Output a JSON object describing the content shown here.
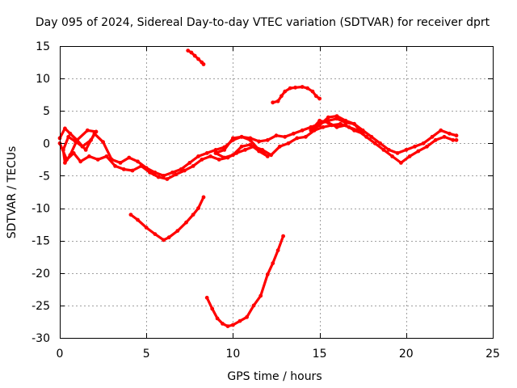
{
  "chart_data": {
    "type": "scatter",
    "title": "Day 095 of 2024, Sidereal Day-to-day VTEC variation (SDTVAR) for receiver dprt",
    "xlabel": "GPS time / hours",
    "ylabel": "SDTVAR / TECUs",
    "xlim": [
      0,
      25
    ],
    "ylim": [
      -30,
      15
    ],
    "xticks": [
      0,
      5,
      10,
      15,
      20,
      25
    ],
    "yticks": [
      15,
      10,
      5,
      0,
      -5,
      -10,
      -15,
      -20,
      -25,
      -30
    ],
    "grid": true,
    "color": "#ff0000",
    "series": [
      {
        "name": "main-band-upper",
        "x": [
          0,
          0.3,
          0.6,
          1.0,
          1.5,
          2.0,
          2.5,
          3.0,
          3.5,
          4.0,
          4.5,
          5.0,
          5.5,
          6.0,
          6.5,
          7.0,
          7.5,
          8.0,
          8.5,
          9.0,
          9.5,
          10.0,
          10.5,
          11.0,
          11.5,
          12.0,
          12.5,
          13.0,
          13.5,
          14.0,
          14.5,
          15.0,
          15.5,
          16.0,
          16.5,
          17.0,
          17.5,
          18.0,
          18.5,
          19.0,
          19.5,
          20.0,
          20.5,
          21.0,
          21.5,
          22.0,
          22.5,
          22.9
        ],
        "y": [
          0.8,
          2.3,
          1.5,
          0.5,
          -1.0,
          1.5,
          0.2,
          -2.5,
          -3.0,
          -2.2,
          -2.8,
          -3.8,
          -4.5,
          -5.0,
          -4.5,
          -4.0,
          -3.0,
          -2.0,
          -1.5,
          -1.0,
          -0.6,
          0.5,
          1.0,
          0.8,
          0.3,
          0.5,
          1.2,
          1.0,
          1.5,
          2.0,
          2.5,
          3.0,
          3.5,
          3.8,
          3.2,
          3.0,
          2.0,
          1.0,
          0.0,
          -1.0,
          -1.5,
          -1.0,
          -0.5,
          0.0,
          1.0,
          2.0,
          1.5,
          1.2
        ]
      },
      {
        "name": "main-band-lower",
        "x": [
          0,
          0.4,
          0.8,
          1.2,
          1.7,
          2.2,
          2.7,
          3.2,
          3.7,
          4.2,
          4.7,
          5.2,
          5.7,
          6.2,
          6.7,
          7.2,
          7.7,
          8.2,
          8.7,
          9.2,
          9.7,
          10.2,
          10.7,
          11.2,
          11.7,
          12.2,
          12.7,
          13.2,
          13.7,
          14.2,
          14.7,
          15.2,
          15.7,
          16.2,
          16.7,
          17.2,
          17.7,
          18.2,
          18.7,
          19.2,
          19.7,
          20.2,
          20.7,
          21.2,
          21.7,
          22.2,
          22.7,
          22.9
        ],
        "y": [
          0.0,
          -2.5,
          -1.5,
          -2.8,
          -2.0,
          -2.5,
          -2.0,
          -3.5,
          -4.0,
          -4.2,
          -3.5,
          -4.5,
          -5.2,
          -5.5,
          -4.8,
          -4.2,
          -3.5,
          -2.5,
          -2.0,
          -2.5,
          -2.2,
          -1.5,
          -1.0,
          -0.5,
          -1.0,
          -1.8,
          -0.5,
          0.0,
          0.8,
          1.0,
          2.0,
          2.5,
          2.8,
          3.0,
          2.5,
          2.0,
          1.0,
          0.0,
          -1.0,
          -2.0,
          -3.0,
          -2.0,
          -1.2,
          -0.5,
          0.5,
          1.0,
          0.5,
          0.5
        ]
      },
      {
        "name": "loop-early",
        "x": [
          0.2,
          0.5,
          0.9,
          1.3,
          1.8,
          2.1,
          1.6,
          1.0,
          0.6,
          0.3,
          0.2
        ],
        "y": [
          -1.0,
          1.0,
          0.3,
          -0.5,
          0.5,
          1.8,
          2.0,
          0.5,
          -1.8,
          -3.0,
          -1.0
        ]
      },
      {
        "name": "loop-mid",
        "x": [
          9.0,
          9.5,
          10.0,
          10.5,
          11.0,
          11.5,
          12.0,
          11.5,
          11.0,
          10.5,
          10.0,
          9.5,
          9.0
        ],
        "y": [
          -1.5,
          -1.0,
          0.8,
          1.0,
          0.5,
          -1.0,
          -2.0,
          -1.2,
          -0.2,
          -0.5,
          -1.8,
          -2.2,
          -1.5
        ]
      },
      {
        "name": "loop-late",
        "x": [
          14.5,
          15.0,
          15.5,
          16.0,
          16.5,
          17.0,
          17.5,
          17.0,
          16.5,
          16.0,
          15.5,
          15.0,
          14.5
        ],
        "y": [
          2.0,
          2.8,
          4.0,
          4.2,
          3.5,
          3.0,
          1.5,
          2.0,
          2.8,
          2.5,
          3.2,
          3.5,
          2.0
        ]
      },
      {
        "name": "arc-upper-short",
        "x": [
          7.4,
          7.6,
          7.8,
          8.0,
          8.2,
          8.3
        ],
        "y": [
          14.3,
          14.0,
          13.5,
          13.0,
          12.5,
          12.2
        ]
      },
      {
        "name": "arc-upper-hump",
        "x": [
          12.3,
          12.6,
          12.8,
          13.0,
          13.3,
          13.6,
          14.0,
          14.3,
          14.6,
          14.8,
          15.0
        ],
        "y": [
          6.3,
          6.5,
          7.3,
          8.0,
          8.5,
          8.6,
          8.7,
          8.5,
          8.0,
          7.3,
          6.9
        ]
      },
      {
        "name": "arc-v-left",
        "x": [
          4.1,
          4.5,
          5.0,
          5.5,
          6.0,
          6.3,
          6.8,
          7.3,
          7.7,
          8.0,
          8.3
        ],
        "y": [
          -11.0,
          -11.8,
          -13.0,
          -14.0,
          -14.9,
          -14.5,
          -13.5,
          -12.2,
          -11.0,
          -10.0,
          -8.3
        ]
      },
      {
        "name": "arc-deep",
        "x": [
          8.5,
          8.8,
          9.1,
          9.4,
          9.7,
          10.0,
          10.4,
          10.8,
          11.2,
          11.6,
          12.0,
          12.3,
          12.6,
          12.9
        ],
        "y": [
          -23.8,
          -25.5,
          -27.0,
          -27.8,
          -28.2,
          -28.0,
          -27.4,
          -26.8,
          -25.0,
          -23.5,
          -20.2,
          -18.5,
          -16.5,
          -14.3
        ]
      }
    ]
  }
}
